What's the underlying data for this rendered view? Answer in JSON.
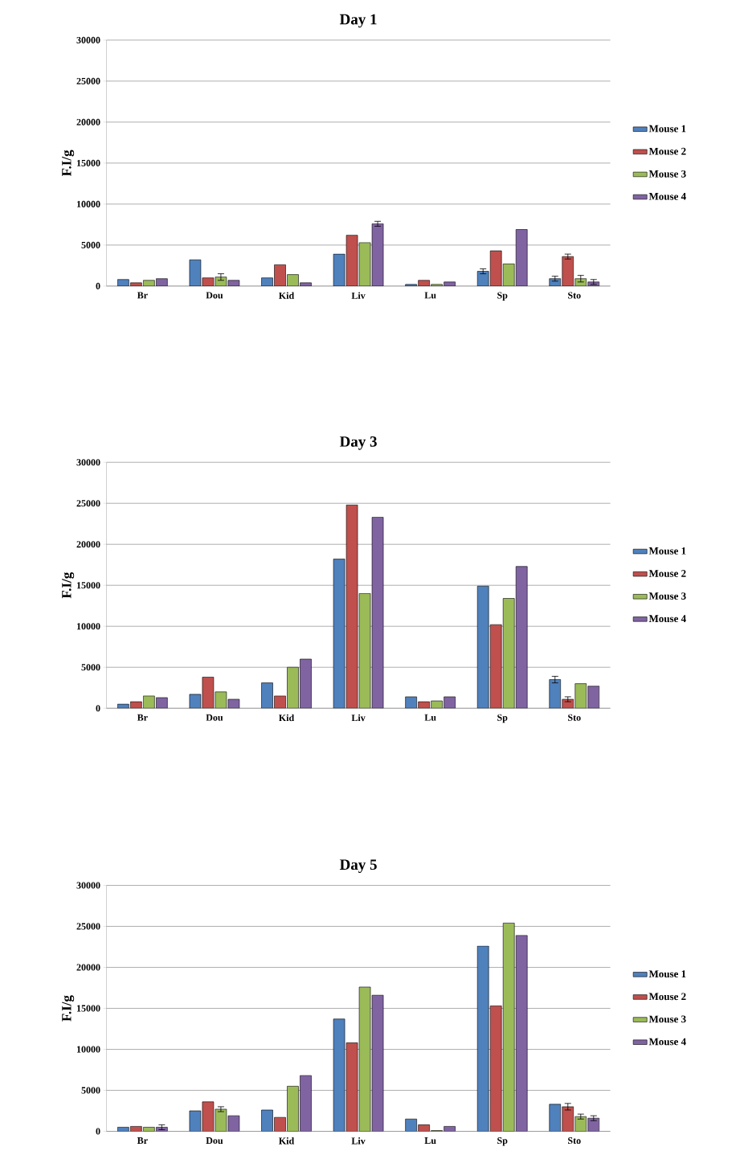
{
  "chart_data": [
    {
      "type": "bar",
      "title": "Day 1",
      "ylabel": "F.I/g",
      "categories": [
        "Br",
        "Dou",
        "Kid",
        "Liv",
        "Lu",
        "Sp",
        "Sto"
      ],
      "ylim": [
        0,
        30000
      ],
      "yticks": [
        0,
        5000,
        10000,
        15000,
        20000,
        25000,
        30000
      ],
      "grid": "y",
      "legend": "right",
      "series": [
        {
          "name": "Mouse 1",
          "color": "#4f81bd",
          "values": [
            800,
            3200,
            1000,
            3900,
            200,
            1800,
            900
          ],
          "errors": [
            null,
            null,
            null,
            null,
            null,
            300,
            300
          ]
        },
        {
          "name": "Mouse 2",
          "color": "#c0504d",
          "values": [
            400,
            1000,
            2600,
            6200,
            700,
            4300,
            3600
          ],
          "errors": [
            null,
            null,
            null,
            null,
            null,
            null,
            300
          ]
        },
        {
          "name": "Mouse 3",
          "color": "#9bbb59",
          "values": [
            700,
            1100,
            1400,
            5300,
            200,
            2700,
            900
          ],
          "errors": [
            null,
            400,
            null,
            null,
            null,
            null,
            400
          ]
        },
        {
          "name": "Mouse 4",
          "color": "#8064a2",
          "values": [
            900,
            700,
            400,
            7600,
            500,
            6900,
            500
          ],
          "errors": [
            null,
            null,
            null,
            300,
            null,
            null,
            300
          ]
        }
      ]
    },
    {
      "type": "bar",
      "title": "Day 3",
      "ylabel": "F.I/g",
      "categories": [
        "Br",
        "Dou",
        "Kid",
        "Liv",
        "Lu",
        "Sp",
        "Sto"
      ],
      "ylim": [
        0,
        30000
      ],
      "yticks": [
        0,
        5000,
        10000,
        15000,
        20000,
        25000,
        30000
      ],
      "grid": "y",
      "legend": "right",
      "series": [
        {
          "name": "Mouse 1",
          "color": "#4f81bd",
          "values": [
            500,
            1700,
            3100,
            18200,
            1400,
            14900,
            3500
          ],
          "errors": [
            null,
            null,
            null,
            null,
            null,
            null,
            400
          ]
        },
        {
          "name": "Mouse 2",
          "color": "#c0504d",
          "values": [
            800,
            3800,
            1500,
            24800,
            800,
            10200,
            1100
          ],
          "errors": [
            null,
            null,
            null,
            null,
            null,
            null,
            300
          ]
        },
        {
          "name": "Mouse 3",
          "color": "#9bbb59",
          "values": [
            1500,
            2000,
            5000,
            14000,
            900,
            13400,
            3000
          ],
          "errors": [
            null,
            null,
            null,
            null,
            null,
            null,
            null
          ]
        },
        {
          "name": "Mouse 4",
          "color": "#8064a2",
          "values": [
            1300,
            1100,
            6000,
            23300,
            1400,
            17300,
            2700
          ],
          "errors": [
            null,
            null,
            null,
            null,
            null,
            null,
            null
          ]
        }
      ]
    },
    {
      "type": "bar",
      "title": "Day 5",
      "ylabel": "F.I/g",
      "categories": [
        "Br",
        "Dou",
        "Kid",
        "Liv",
        "Lu",
        "Sp",
        "Sto"
      ],
      "ylim": [
        0,
        30000
      ],
      "yticks": [
        0,
        5000,
        10000,
        15000,
        20000,
        25000,
        30000
      ],
      "grid": "y",
      "legend": "right",
      "series": [
        {
          "name": "Mouse 1",
          "color": "#4f81bd",
          "values": [
            500,
            2500,
            2600,
            13700,
            1500,
            22600,
            3300
          ],
          "errors": [
            null,
            null,
            null,
            null,
            null,
            null,
            null
          ]
        },
        {
          "name": "Mouse 2",
          "color": "#c0504d",
          "values": [
            600,
            3600,
            1700,
            10800,
            800,
            15300,
            3000
          ],
          "errors": [
            null,
            null,
            null,
            null,
            null,
            null,
            400
          ]
        },
        {
          "name": "Mouse 3",
          "color": "#9bbb59",
          "values": [
            500,
            2700,
            5500,
            17600,
            100,
            25400,
            1800
          ],
          "errors": [
            null,
            300,
            null,
            null,
            null,
            null,
            300
          ]
        },
        {
          "name": "Mouse 4",
          "color": "#8064a2",
          "values": [
            500,
            1900,
            6800,
            16600,
            600,
            23900,
            1600
          ],
          "errors": [
            300,
            null,
            null,
            null,
            null,
            null,
            300
          ]
        }
      ]
    }
  ]
}
